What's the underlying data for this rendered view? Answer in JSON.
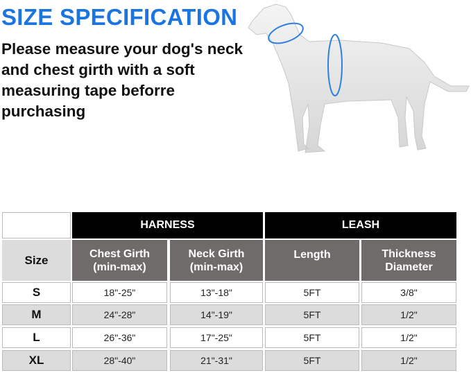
{
  "title": "SIZE SPECIFICATION",
  "description": "Please measure your dog's neck and chest girth with a soft measuring tape beforre purchasing",
  "accent_color": "#1a75e0",
  "image": {
    "subject": "dog-mannequin-with-neck-and-chest-measure-rings"
  },
  "table": {
    "group_headers": [
      "HARNESS",
      "LEASH"
    ],
    "columns": [
      "Size",
      "Chest Girth (min-max)",
      "Neck Girth (min-max)",
      "Length",
      "Thickness Diameter"
    ],
    "rows": [
      [
        "S",
        "18\"-25\"",
        "13\"-18\"",
        "5FT",
        "3/8\""
      ],
      [
        "M",
        "24\"-28\"",
        "14\"-19\"",
        "5FT",
        "1/2\""
      ],
      [
        "L",
        "26\"-36\"",
        "17\"-25\"",
        "5FT",
        "1/2\""
      ],
      [
        "XL",
        "28\"-40\"",
        "21\"-31\"",
        "5FT",
        "1/2\""
      ]
    ]
  }
}
